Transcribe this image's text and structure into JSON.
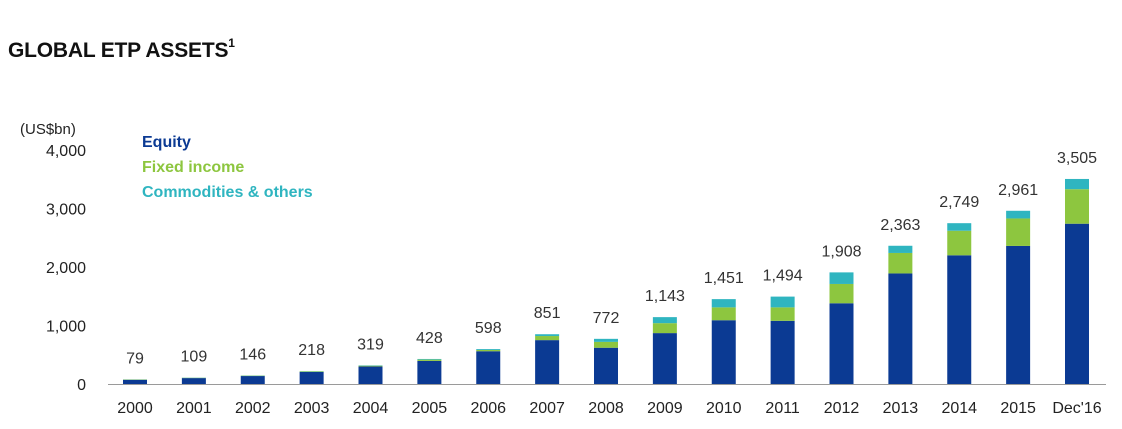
{
  "chart_data": {
    "type": "bar",
    "stacked": true,
    "title": "GLOBAL ETP ASSETS",
    "title_footnote": "1",
    "ylabel": "(US$bn)",
    "ylim": [
      0,
      4000
    ],
    "yticks": [
      0,
      1000,
      2000,
      3000,
      4000
    ],
    "ytick_labels": [
      "0",
      "1,000",
      "2,000",
      "3,000",
      "4,000"
    ],
    "grid": false,
    "legend_position": "top-left",
    "categories": [
      "2000",
      "2001",
      "2002",
      "2003",
      "2004",
      "2005",
      "2006",
      "2007",
      "2008",
      "2009",
      "2010",
      "2011",
      "2012",
      "2013",
      "2014",
      "2015",
      "Dec'16"
    ],
    "series": [
      {
        "name": "Equity",
        "color": "#0b3a93",
        "values": [
          72,
          101,
          136,
          205,
          300,
          395,
          560,
          750,
          620,
          870,
          1090,
          1080,
          1380,
          1890,
          2200,
          2360,
          2740
        ]
      },
      {
        "name": "Fixed income",
        "color": "#8dc63f",
        "values": [
          5,
          5,
          7,
          9,
          13,
          22,
          23,
          70,
          100,
          170,
          220,
          230,
          330,
          350,
          420,
          470,
          590
        ]
      },
      {
        "name": "Commodities & others",
        "color": "#2fb5c0",
        "values": [
          2,
          3,
          3,
          4,
          6,
          11,
          15,
          31,
          52,
          103,
          141,
          184,
          198,
          123,
          129,
          131,
          175
        ]
      }
    ],
    "totals": [
      79,
      109,
      146,
      218,
      319,
      428,
      598,
      851,
      772,
      1143,
      1451,
      1494,
      1908,
      2363,
      2749,
      2961,
      3505
    ],
    "total_labels": [
      "79",
      "109",
      "146",
      "218",
      "319",
      "428",
      "598",
      "851",
      "772",
      "1,143",
      "1,451",
      "1,494",
      "1,908",
      "2,363",
      "2,749",
      "2,961",
      "3,505"
    ]
  }
}
